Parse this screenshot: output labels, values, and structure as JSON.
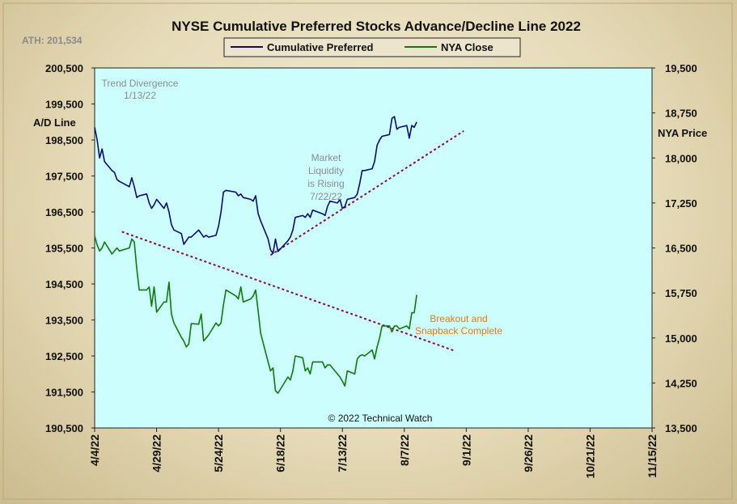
{
  "chart_data": {
    "type": "line",
    "title": "NYSE Cumulative  Preferred Stocks Advance/Decline  Line 2022",
    "ath_label": "ATH: 201,534",
    "y_left_label": "A/D Line",
    "y_right_label": "NYA Price",
    "y_left_ticks": [
      "200,500",
      "199,500",
      "198,500",
      "197,500",
      "196,500",
      "195,500",
      "194,500",
      "193,500",
      "192,500",
      "191,500",
      "190,500"
    ],
    "y_right_ticks": [
      "19,500",
      "18,750",
      "18,000",
      "17,250",
      "16,500",
      "15,750",
      "15,000",
      "14,250",
      "13,500"
    ],
    "x_ticks": [
      "4/4/22",
      "4/29/22",
      "5/24/22",
      "6/18/22",
      "7/13/22",
      "8/7/22",
      "9/1/22",
      "9/26/22",
      "10/21/22",
      "11/15/22"
    ],
    "x_range": [
      "2022-04-04",
      "2022-11-15"
    ],
    "y_left_range": [
      190500,
      200500
    ],
    "y_right_range": [
      13500,
      19500
    ],
    "grid": false,
    "plot_background": "#ccfefe",
    "copyright": "© 2022 Technical Watch",
    "annotations": {
      "trend_divergence": [
        "Trend  Divergence",
        "1/13/22"
      ],
      "market_liquidity": [
        "Market",
        "Liquidity",
        "is Rising",
        "7/22/22"
      ],
      "breakout": [
        "Breakout and",
        "Snapback Complete"
      ]
    },
    "trendlines": [
      {
        "name": "rising",
        "color": "#8b0a3a",
        "from": [
          "2022-06-14",
          195300
        ],
        "to": [
          "2022-08-31",
          198750
        ]
      },
      {
        "name": "falling",
        "color": "#8b0a3a",
        "from": [
          "2022-04-15",
          195950
        ],
        "to": [
          "2022-08-27",
          192650
        ]
      }
    ],
    "series": [
      {
        "name": "Cumulative Preferred",
        "color": "#0a0a78",
        "axis": "left",
        "points": [
          [
            "2022-04-04",
            198850
          ],
          [
            "2022-04-05",
            198500
          ],
          [
            "2022-04-06",
            198000
          ],
          [
            "2022-04-07",
            198250
          ],
          [
            "2022-04-08",
            197900
          ],
          [
            "2022-04-11",
            197650
          ],
          [
            "2022-04-12",
            197600
          ],
          [
            "2022-04-13",
            197400
          ],
          [
            "2022-04-14",
            197350
          ],
          [
            "2022-04-18",
            197200
          ],
          [
            "2022-04-19",
            197450
          ],
          [
            "2022-04-20",
            197200
          ],
          [
            "2022-04-21",
            196900
          ],
          [
            "2022-04-22",
            196950
          ],
          [
            "2022-04-25",
            197000
          ],
          [
            "2022-04-26",
            196750
          ],
          [
            "2022-04-27",
            196600
          ],
          [
            "2022-04-28",
            196700
          ],
          [
            "2022-04-29",
            196850
          ],
          [
            "2022-05-02",
            196600
          ],
          [
            "2022-05-03",
            196750
          ],
          [
            "2022-05-04",
            196500
          ],
          [
            "2022-05-05",
            196150
          ],
          [
            "2022-05-06",
            196000
          ],
          [
            "2022-05-09",
            195900
          ],
          [
            "2022-05-10",
            195600
          ],
          [
            "2022-05-11",
            195700
          ],
          [
            "2022-05-12",
            195800
          ],
          [
            "2022-05-13",
            195800
          ],
          [
            "2022-05-16",
            196000
          ],
          [
            "2022-05-17",
            195900
          ],
          [
            "2022-05-18",
            195800
          ],
          [
            "2022-05-19",
            195850
          ],
          [
            "2022-05-20",
            195800
          ],
          [
            "2022-05-23",
            195850
          ],
          [
            "2022-05-24",
            196100
          ],
          [
            "2022-05-25",
            196500
          ],
          [
            "2022-05-26",
            197050
          ],
          [
            "2022-05-27",
            197100
          ],
          [
            "2022-05-31",
            197050
          ],
          [
            "2022-06-01",
            196950
          ],
          [
            "2022-06-02",
            197000
          ],
          [
            "2022-06-03",
            196900
          ],
          [
            "2022-06-06",
            196850
          ],
          [
            "2022-06-07",
            196800
          ],
          [
            "2022-06-08",
            196950
          ],
          [
            "2022-06-09",
            196450
          ],
          [
            "2022-06-10",
            196250
          ],
          [
            "2022-06-13",
            195750
          ],
          [
            "2022-06-14",
            195450
          ],
          [
            "2022-06-15",
            195350
          ],
          [
            "2022-06-16",
            195750
          ],
          [
            "2022-06-17",
            195400
          ],
          [
            "2022-06-21",
            195700
          ],
          [
            "2022-06-22",
            195800
          ],
          [
            "2022-06-23",
            196000
          ],
          [
            "2022-06-24",
            196350
          ],
          [
            "2022-06-27",
            196400
          ],
          [
            "2022-06-28",
            196350
          ],
          [
            "2022-06-29",
            196450
          ],
          [
            "2022-06-30",
            196350
          ],
          [
            "2022-07-01",
            196550
          ],
          [
            "2022-07-05",
            196450
          ],
          [
            "2022-07-06",
            196400
          ],
          [
            "2022-07-07",
            196650
          ],
          [
            "2022-07-08",
            196800
          ],
          [
            "2022-07-11",
            196750
          ],
          [
            "2022-07-12",
            196850
          ],
          [
            "2022-07-13",
            196600
          ],
          [
            "2022-07-14",
            196650
          ],
          [
            "2022-07-15",
            196850
          ],
          [
            "2022-07-18",
            196900
          ],
          [
            "2022-07-19",
            197000
          ],
          [
            "2022-07-20",
            197300
          ],
          [
            "2022-07-21",
            197650
          ],
          [
            "2022-07-22",
            197650
          ],
          [
            "2022-07-25",
            197700
          ],
          [
            "2022-07-26",
            197900
          ],
          [
            "2022-07-27",
            198350
          ],
          [
            "2022-07-28",
            198500
          ],
          [
            "2022-07-29",
            198600
          ],
          [
            "2022-08-01",
            198650
          ],
          [
            "2022-08-02",
            199100
          ],
          [
            "2022-08-03",
            199150
          ],
          [
            "2022-08-04",
            198800
          ],
          [
            "2022-08-05",
            198850
          ],
          [
            "2022-08-08",
            198900
          ],
          [
            "2022-08-09",
            198550
          ],
          [
            "2022-08-10",
            198900
          ],
          [
            "2022-08-11",
            198850
          ],
          [
            "2022-08-12",
            199000
          ]
        ]
      },
      {
        "name": "NYA Close",
        "color": "#0e7a0e",
        "axis": "right",
        "points": [
          [
            "2022-04-04",
            16700
          ],
          [
            "2022-04-05",
            16550
          ],
          [
            "2022-04-06",
            16450
          ],
          [
            "2022-04-07",
            16500
          ],
          [
            "2022-04-08",
            16600
          ],
          [
            "2022-04-11",
            16400
          ],
          [
            "2022-04-12",
            16450
          ],
          [
            "2022-04-13",
            16500
          ],
          [
            "2022-04-14",
            16450
          ],
          [
            "2022-04-18",
            16500
          ],
          [
            "2022-04-19",
            16650
          ],
          [
            "2022-04-20",
            16600
          ],
          [
            "2022-04-21",
            16150
          ],
          [
            "2022-04-22",
            15800
          ],
          [
            "2022-04-25",
            15800
          ],
          [
            "2022-04-26",
            15850
          ],
          [
            "2022-04-27",
            15530
          ],
          [
            "2022-04-28",
            15850
          ],
          [
            "2022-04-29",
            15430
          ],
          [
            "2022-05-02",
            15600
          ],
          [
            "2022-05-03",
            15600
          ],
          [
            "2022-05-04",
            15930
          ],
          [
            "2022-05-05",
            15400
          ],
          [
            "2022-05-06",
            15250
          ],
          [
            "2022-05-09",
            15010
          ],
          [
            "2022-05-10",
            14950
          ],
          [
            "2022-05-11",
            14850
          ],
          [
            "2022-05-12",
            14900
          ],
          [
            "2022-05-13",
            15240
          ],
          [
            "2022-05-16",
            15230
          ],
          [
            "2022-05-17",
            15400
          ],
          [
            "2022-05-18",
            14950
          ],
          [
            "2022-05-19",
            15000
          ],
          [
            "2022-05-20",
            15050
          ],
          [
            "2022-05-23",
            15250
          ],
          [
            "2022-05-24",
            15200
          ],
          [
            "2022-05-25",
            15250
          ],
          [
            "2022-05-26",
            15550
          ],
          [
            "2022-05-27",
            15800
          ],
          [
            "2022-05-31",
            15700
          ],
          [
            "2022-06-01",
            15650
          ],
          [
            "2022-06-02",
            15850
          ],
          [
            "2022-06-03",
            15600
          ],
          [
            "2022-06-06",
            15650
          ],
          [
            "2022-06-07",
            15700
          ],
          [
            "2022-06-08",
            15800
          ],
          [
            "2022-06-09",
            15450
          ],
          [
            "2022-06-10",
            15080
          ],
          [
            "2022-06-13",
            14600
          ],
          [
            "2022-06-14",
            14450
          ],
          [
            "2022-06-15",
            14500
          ],
          [
            "2022-06-16",
            14120
          ],
          [
            "2022-06-17",
            14080
          ],
          [
            "2022-06-21",
            14350
          ],
          [
            "2022-06-22",
            14300
          ],
          [
            "2022-06-23",
            14450
          ],
          [
            "2022-06-24",
            14700
          ],
          [
            "2022-06-27",
            14670
          ],
          [
            "2022-06-28",
            14450
          ],
          [
            "2022-06-29",
            14500
          ],
          [
            "2022-06-30",
            14400
          ],
          [
            "2022-07-01",
            14600
          ],
          [
            "2022-07-05",
            14600
          ],
          [
            "2022-07-06",
            14500
          ],
          [
            "2022-07-07",
            14550
          ],
          [
            "2022-07-08",
            14550
          ],
          [
            "2022-07-11",
            14400
          ],
          [
            "2022-07-12",
            14350
          ],
          [
            "2022-07-13",
            14280
          ],
          [
            "2022-07-14",
            14200
          ],
          [
            "2022-07-15",
            14450
          ],
          [
            "2022-07-18",
            14400
          ],
          [
            "2022-07-19",
            14650
          ],
          [
            "2022-07-20",
            14700
          ],
          [
            "2022-07-21",
            14720
          ],
          [
            "2022-07-22",
            14700
          ],
          [
            "2022-07-25",
            14800
          ],
          [
            "2022-07-26",
            14650
          ],
          [
            "2022-07-27",
            14850
          ],
          [
            "2022-07-28",
            15000
          ],
          [
            "2022-07-29",
            15200
          ],
          [
            "2022-08-01",
            15200
          ],
          [
            "2022-08-02",
            15100
          ],
          [
            "2022-08-03",
            15200
          ],
          [
            "2022-08-04",
            15200
          ],
          [
            "2022-08-05",
            15150
          ],
          [
            "2022-08-08",
            15200
          ],
          [
            "2022-08-09",
            15150
          ],
          [
            "2022-08-10",
            15420
          ],
          [
            "2022-08-11",
            15420
          ],
          [
            "2022-08-12",
            15720
          ]
        ]
      }
    ]
  }
}
